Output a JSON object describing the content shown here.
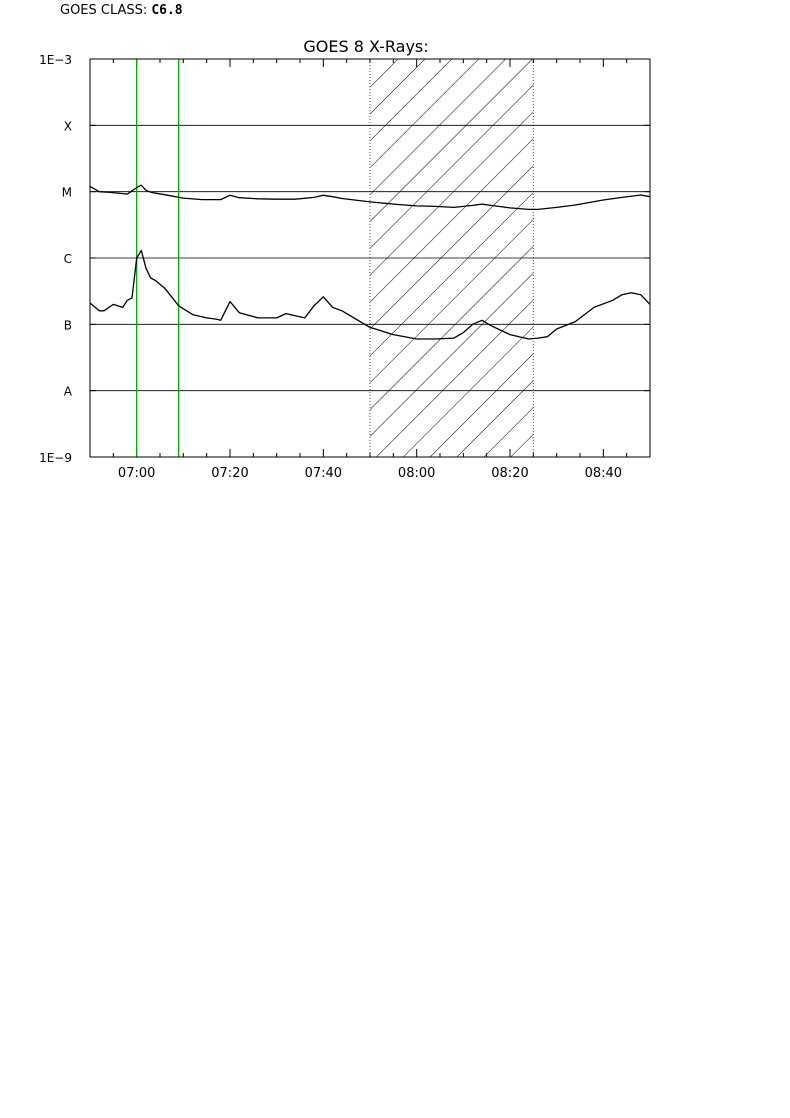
{
  "header": {
    "class_label": "GOES CLASS:",
    "class_value": "C6.8"
  },
  "chart_data": {
    "type": "line",
    "title": "GOES 8 X-Rays:",
    "xlabel": "",
    "ylabel": "",
    "y_scale": "log",
    "xlim": [
      "06:50",
      "08:50"
    ],
    "ylim": [
      1e-09,
      0.001
    ],
    "x_ticks": [
      "07:00",
      "07:20",
      "07:40",
      "08:00",
      "08:20",
      "08:40"
    ],
    "y_tick_labels": [
      {
        "label": "1E−3",
        "value": 0.001
      },
      {
        "label": "X",
        "value": 0.0001
      },
      {
        "label": "M",
        "value": 1e-05
      },
      {
        "label": "C",
        "value": 1e-06
      },
      {
        "label": "B",
        "value": 1e-07
      },
      {
        "label": "A",
        "value": 1e-08
      },
      {
        "label": "1E−9",
        "value": 1e-09
      }
    ],
    "grid": "horizontal lines at class boundaries",
    "line_color": "#000000",
    "marker_color": "#00aa00",
    "hatch_color": "#000000",
    "vertical_markers": [
      "07:00",
      "07:09"
    ],
    "shaded_interval": [
      "07:50",
      "08:25"
    ],
    "series": [
      {
        "x": [
          "06:50",
          "06:52",
          "06:54",
          "06:56",
          "06:58",
          "07:00",
          "07:01",
          "07:02",
          "07:03",
          "07:04",
          "07:06",
          "07:10",
          "07:14",
          "07:18",
          "07:20",
          "07:22",
          "07:26",
          "07:30",
          "07:34",
          "07:38",
          "07:40",
          "07:42",
          "07:44",
          "07:50",
          "07:56",
          "08:00",
          "08:04",
          "08:08",
          "08:12",
          "08:14",
          "08:16",
          "08:20",
          "08:24",
          "08:26",
          "08:30",
          "08:34",
          "08:40",
          "08:44",
          "08:48",
          "08:50"
        ],
        "values": [
          1.2e-05,
          1e-05,
          9.8e-06,
          9.5e-06,
          9.2e-06,
          1.15e-05,
          1.25e-05,
          1.05e-05,
          9.8e-06,
          9.5e-06,
          9e-06,
          8e-06,
          7.6e-06,
          7.6e-06,
          8.8e-06,
          8.1e-06,
          7.8e-06,
          7.7e-06,
          7.7e-06,
          8.2e-06,
          8.8e-06,
          8.4e-06,
          7.9e-06,
          7e-06,
          6.4e-06,
          6.1e-06,
          6e-06,
          5.8e-06,
          6.2e-06,
          6.5e-06,
          6.2e-06,
          5.7e-06,
          5.4e-06,
          5.4e-06,
          5.8e-06,
          6.3e-06,
          7.5e-06,
          8.2e-06,
          8.9e-06,
          8.4e-06
        ]
      },
      {
        "x": [
          "06:50",
          "06:52",
          "06:53",
          "06:55",
          "06:57",
          "06:58",
          "06:59",
          "07:00",
          "07:01",
          "07:02",
          "07:03",
          "07:04",
          "07:06",
          "07:09",
          "07:12",
          "07:15",
          "07:17",
          "07:18",
          "07:20",
          "07:22",
          "07:26",
          "07:30",
          "07:32",
          "07:34",
          "07:36",
          "07:38",
          "07:40",
          "07:42",
          "07:44",
          "07:50",
          "07:55",
          "08:00",
          "08:04",
          "08:08",
          "08:10",
          "08:12",
          "08:14",
          "08:16",
          "08:20",
          "08:24",
          "08:26",
          "08:28",
          "08:30",
          "08:34",
          "08:38",
          "08:42",
          "08:44",
          "08:46",
          "08:48",
          "08:50"
        ],
        "values": [
          2.1e-07,
          1.6e-07,
          1.6e-07,
          2e-07,
          1.8e-07,
          2.3e-07,
          2.5e-07,
          1e-06,
          1.3e-06,
          7e-07,
          5e-07,
          4.6e-07,
          3.5e-07,
          1.9e-07,
          1.4e-07,
          1.25e-07,
          1.2e-07,
          1.15e-07,
          2.2e-07,
          1.5e-07,
          1.25e-07,
          1.25e-07,
          1.45e-07,
          1.35e-07,
          1.25e-07,
          1.9e-07,
          2.6e-07,
          1.8e-07,
          1.6e-07,
          9e-08,
          7e-08,
          6e-08,
          6e-08,
          6.2e-08,
          7.5e-08,
          1e-07,
          1.15e-07,
          9.5e-08,
          7e-08,
          6e-08,
          6.2e-08,
          6.5e-08,
          8.5e-08,
          1.1e-07,
          1.8e-07,
          2.3e-07,
          2.8e-07,
          3e-07,
          2.8e-07,
          2e-07
        ]
      }
    ]
  }
}
